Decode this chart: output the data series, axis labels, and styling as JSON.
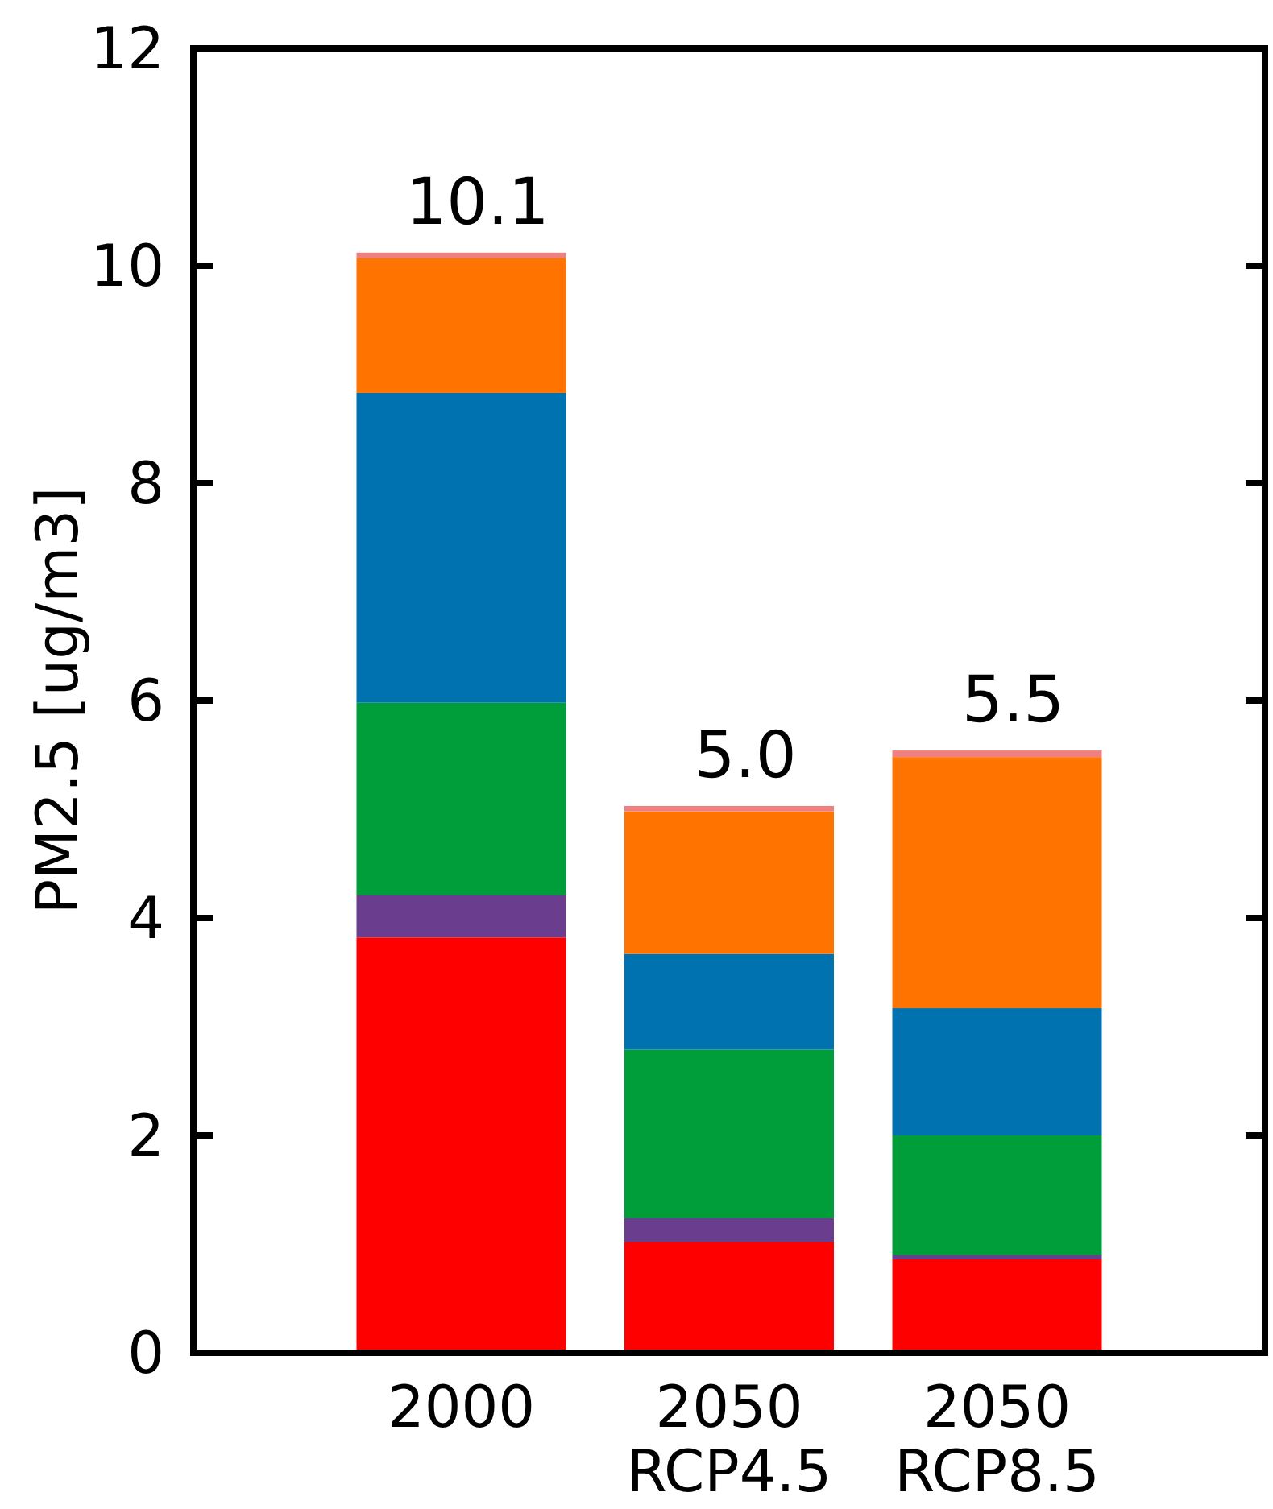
{
  "chart_data": {
    "type": "bar",
    "stacked": true,
    "ylabel": "PM2.5 [ug/m3]",
    "categories": [
      "2000",
      "2050\nRCP4.5",
      "2050\nRCP8.5"
    ],
    "series": [
      {
        "color": "#ff0000",
        "values": [
          3.82,
          1.02,
          0.86
        ]
      },
      {
        "color": "#6a3d8f",
        "values": [
          0.39,
          0.22,
          0.04
        ]
      },
      {
        "color": "#009e3a",
        "values": [
          1.77,
          1.55,
          1.1
        ]
      },
      {
        "color": "#0072b0",
        "values": [
          2.85,
          0.88,
          1.17
        ]
      },
      {
        "color": "#ff7300",
        "values": [
          1.24,
          1.31,
          2.31
        ]
      },
      {
        "color": "#f08080",
        "values": [
          0.05,
          0.05,
          0.06
        ]
      }
    ],
    "totals": [
      "10.1",
      "5.0",
      "5.5"
    ],
    "ylim": [
      0,
      12
    ],
    "yticks": [
      0,
      2,
      4,
      6,
      8,
      10,
      12
    ]
  }
}
